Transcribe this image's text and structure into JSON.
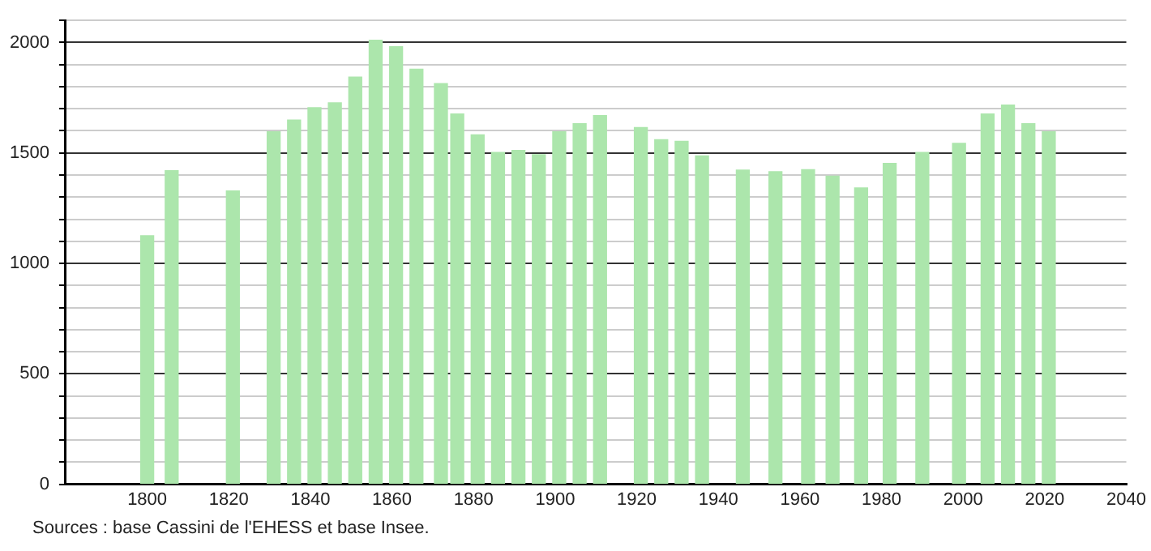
{
  "chart_data": {
    "type": "bar",
    "x": [
      1800,
      1806,
      1821,
      1831,
      1836,
      1841,
      1846,
      1851,
      1856,
      1861,
      1866,
      1872,
      1876,
      1881,
      1886,
      1891,
      1896,
      1901,
      1906,
      1911,
      1921,
      1926,
      1931,
      1936,
      1946,
      1954,
      1962,
      1968,
      1975,
      1982,
      1990,
      1999,
      2006,
      2011,
      2016,
      2021
    ],
    "values": [
      1125,
      1420,
      1328,
      1596,
      1649,
      1705,
      1727,
      1843,
      2010,
      1981,
      1879,
      1814,
      1676,
      1582,
      1502,
      1511,
      1492,
      1596,
      1632,
      1669,
      1615,
      1560,
      1553,
      1487,
      1422,
      1415,
      1424,
      1395,
      1342,
      1453,
      1502,
      1543,
      1676,
      1717,
      1632,
      1596
    ],
    "color": "#ace6ac",
    "xlim": [
      1780,
      2040
    ],
    "xticks": [
      1800,
      1820,
      1840,
      1860,
      1880,
      1900,
      1920,
      1940,
      1960,
      1980,
      2000,
      2020,
      2040
    ],
    "ylim": [
      0,
      2100
    ],
    "yticks": [
      0,
      {
        "value": 100,
        "label": null
      },
      {
        "value": 200,
        "label": null
      },
      {
        "value": 300,
        "label": null
      },
      {
        "value": 400,
        "label": null
      },
      500,
      {
        "value": 600,
        "label": null
      },
      {
        "value": 700,
        "label": null
      },
      {
        "value": 800,
        "label": null
      },
      {
        "value": 900,
        "label": null
      },
      1000,
      {
        "value": 1100,
        "label": null
      },
      {
        "value": 1200,
        "label": null
      },
      {
        "value": 1300,
        "label": null
      },
      {
        "value": 1400,
        "label": null
      },
      1500,
      {
        "value": 1600,
        "label": null
      },
      {
        "value": 1700,
        "label": null
      },
      {
        "value": 1800,
        "label": null
      },
      {
        "value": 1900,
        "label": null
      },
      2000,
      {
        "value": 2100,
        "label": null
      }
    ],
    "grid": "y",
    "annotations": [
      "Sources : base Cassini de l'EHESS et base Insee."
    ]
  }
}
